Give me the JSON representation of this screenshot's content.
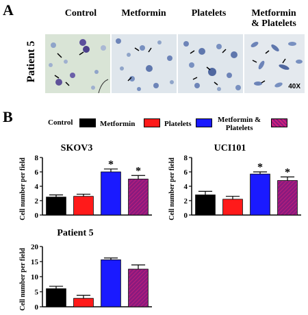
{
  "panel_a": {
    "letter": "A",
    "row_label": "Patient 5",
    "columns": [
      "Control",
      "Metformin",
      "Platelets",
      "Metformin\n& Platelets"
    ],
    "magnification": "40X"
  },
  "panel_b": {
    "letter": "B",
    "legend": [
      {
        "name": "Control",
        "color": "#000000",
        "pattern": "solid"
      },
      {
        "name": "Metformin",
        "color": "#ff1a1a",
        "pattern": "solid"
      },
      {
        "name": "Platelets",
        "color": "#1a1aff",
        "pattern": "solid"
      },
      {
        "name": "Metformin &\nPlatelets",
        "color": "#8a1a7e",
        "pattern": "hatched"
      }
    ]
  },
  "colors": {
    "control": "#000000",
    "metformin": "#ff1a1a",
    "platelets": "#1a1aff",
    "combo": "#8a1a7e",
    "combo_hatch": "#d0207a"
  },
  "chart_data": [
    {
      "type": "bar",
      "title": "SKOV3",
      "ylabel": "Cell number per field",
      "categories": [
        "Control",
        "Metformin",
        "Platelets",
        "Metformin & Platelets"
      ],
      "values": [
        2.5,
        2.6,
        6.0,
        5.0
      ],
      "errors": [
        0.3,
        0.3,
        0.4,
        0.5
      ],
      "significance": [
        "",
        "",
        "*",
        "*"
      ],
      "ylim": [
        0,
        8
      ],
      "yticks": [
        "0",
        "2",
        "4",
        "6",
        "8"
      ]
    },
    {
      "type": "bar",
      "title": "UCI101",
      "ylabel": "Cell number per field",
      "categories": [
        "Control",
        "Metformin",
        "Platelets",
        "Metformin & Platelets"
      ],
      "values": [
        2.8,
        2.2,
        5.7,
        4.8
      ],
      "errors": [
        0.5,
        0.4,
        0.3,
        0.5
      ],
      "significance": [
        "",
        "",
        "*",
        "*"
      ],
      "ylim": [
        0,
        8
      ],
      "yticks": [
        "0",
        "2",
        "4",
        "6",
        "8"
      ]
    },
    {
      "type": "bar",
      "title": "Patient 5",
      "ylabel": "Cell number per field",
      "categories": [
        "Control",
        "Metformin",
        "Platelets",
        "Metformin & Platelets"
      ],
      "values": [
        6.0,
        2.8,
        15.6,
        12.5
      ],
      "errors": [
        0.8,
        1.0,
        0.6,
        1.4
      ],
      "significance": [
        "",
        "",
        "",
        ""
      ],
      "ylim": [
        0,
        20
      ],
      "yticks": [
        "0",
        "5",
        "10",
        "15",
        "20"
      ]
    }
  ]
}
